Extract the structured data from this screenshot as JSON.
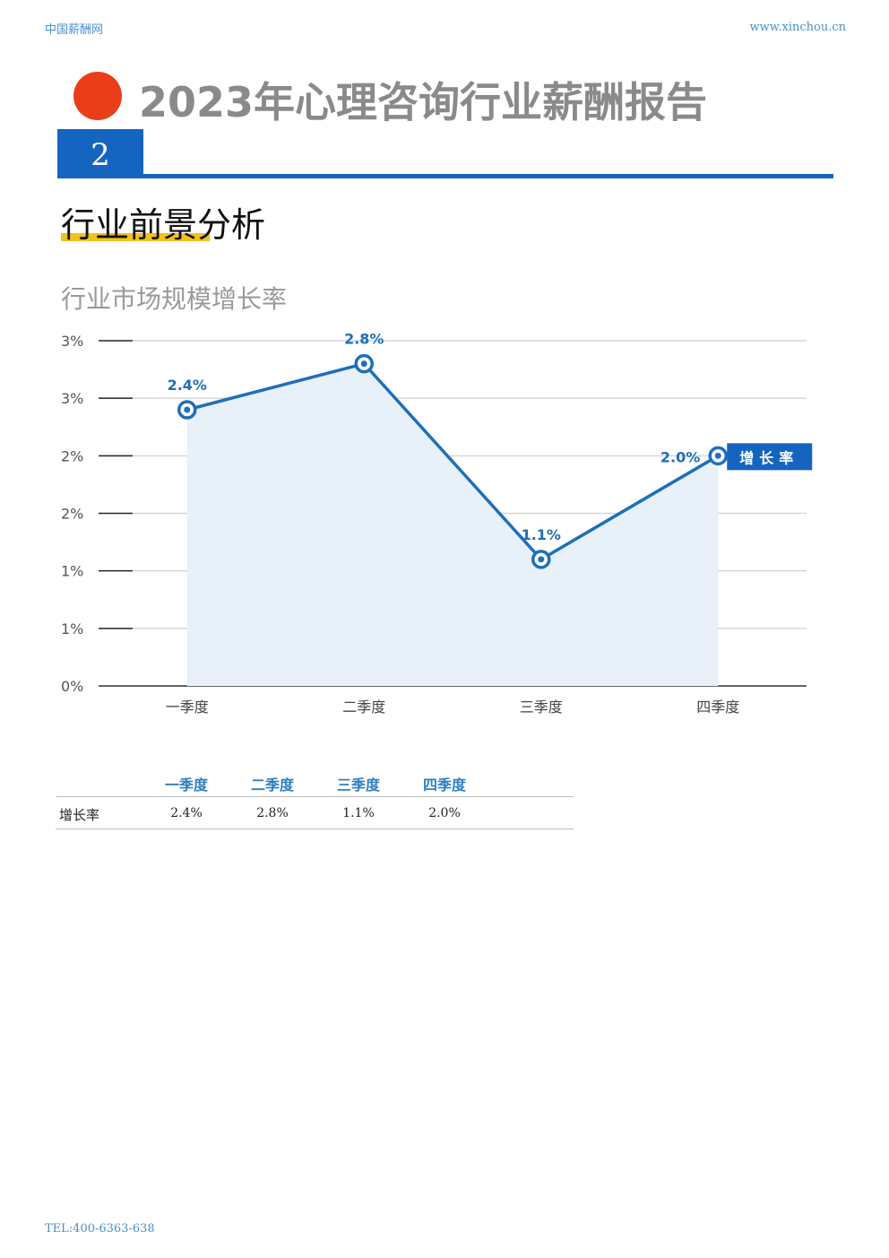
{
  "header": {
    "site_name": "中国薪酬网",
    "site_url": "www.xinchou.cn"
  },
  "report": {
    "title": "2023年心理咨询行业薪酬报告",
    "section_number": "2",
    "section_title": "行业前景分析"
  },
  "chart_data": {
    "type": "area",
    "title": "行业市场规模增长率",
    "categories": [
      "一季度",
      "二季度",
      "三季度",
      "四季度"
    ],
    "series": [
      {
        "name": "增长率",
        "values": [
          2.4,
          2.8,
          1.1,
          2.0
        ],
        "labels": [
          "2.4%",
          "2.8%",
          "1.1%",
          "2.0%"
        ]
      }
    ],
    "y_ticks": [
      "0%",
      "1%",
      "1%",
      "2%",
      "2%",
      "3%",
      "3%"
    ],
    "ylim": [
      0,
      3
    ],
    "grid": true,
    "legend": "right",
    "colors": {
      "line": "#1f6fb7",
      "fill": "#e8f0f9",
      "legend_bg": "#1565c0"
    }
  },
  "table": {
    "headers": [
      "一季度",
      "二季度",
      "三季度",
      "四季度"
    ],
    "row_label": "增长率",
    "values": [
      "2.4%",
      "2.8%",
      "1.1%",
      "2.0%"
    ]
  },
  "footer": {
    "tel": "TEL:400-6363-638"
  }
}
